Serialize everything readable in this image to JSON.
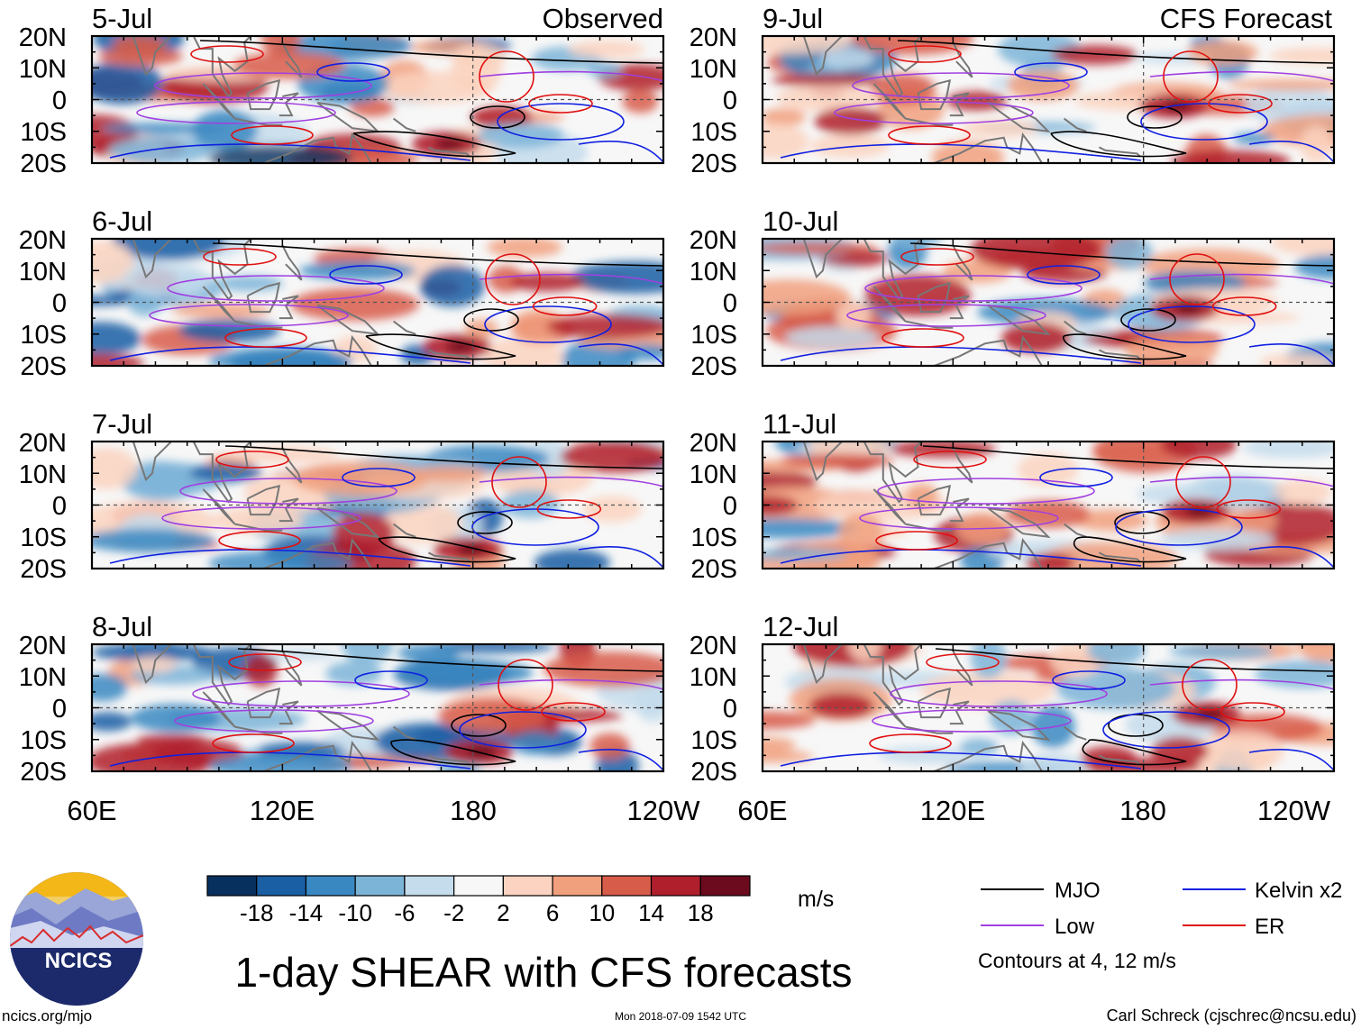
{
  "header": {
    "observed_label": "Observed",
    "forecast_label": "CFS Forecast"
  },
  "lat_labels": [
    "20N",
    "10N",
    "0",
    "10S",
    "20S"
  ],
  "lon_labels": [
    "60E",
    "120E",
    "180",
    "120W"
  ],
  "panels_observed": [
    {
      "date": "5-Jul"
    },
    {
      "date": "6-Jul"
    },
    {
      "date": "7-Jul"
    },
    {
      "date": "8-Jul"
    }
  ],
  "panels_forecast": [
    {
      "date": "9-Jul"
    },
    {
      "date": "10-Jul"
    },
    {
      "date": "11-Jul"
    },
    {
      "date": "12-Jul"
    }
  ],
  "colorbar": {
    "tick_labels": [
      "-18",
      "-14",
      "-10",
      "-6",
      "-2",
      "2",
      "6",
      "10",
      "14",
      "18"
    ],
    "units": "m/s",
    "colors": [
      "#08305e",
      "#1a5ea4",
      "#3a88c2",
      "#7cb4d8",
      "#c4dcec",
      "#f7f7f7",
      "#fbd3c0",
      "#f1a07e",
      "#d85c4a",
      "#b01f2c",
      "#6c0a1e"
    ]
  },
  "legend": {
    "items": [
      {
        "label": "MJO",
        "color": "#000000"
      },
      {
        "label": "Kelvin x2",
        "color": "#1020e0"
      },
      {
        "label": "Low",
        "color": "#a040e0"
      },
      {
        "label": "ER",
        "color": "#e01010"
      }
    ],
    "contours_note": "Contours at 4, 12 m/s"
  },
  "logo": {
    "text": "NCICS"
  },
  "title": "1-day SHEAR with CFS forecasts",
  "footer": {
    "url": "ncics.org/mjo",
    "timestamp": "Mon 2018-07-09 1542 UTC",
    "author": "Carl Schreck (cjschrec@ncsu.edu)"
  }
}
